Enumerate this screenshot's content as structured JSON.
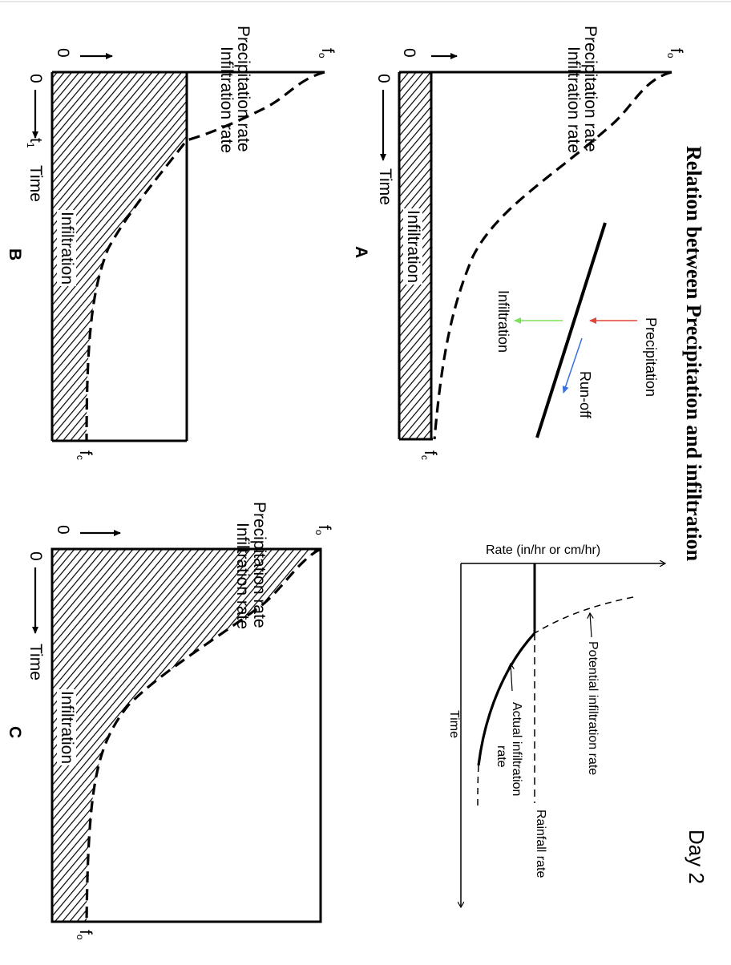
{
  "title": "Relation between Precipitation and infiltration",
  "day_label": "Day 2",
  "panels": [
    {
      "id": "A",
      "letter": "A",
      "axis_top_line1": "Precipitation rate",
      "axis_top_line2": "Infiltration rate",
      "origin_zero_x": "0",
      "origin_zero_y": "0",
      "time_label": "Time",
      "f0_label": "f",
      "f0_sub": "o",
      "fc_label": "f",
      "fc_sub": "c",
      "region_label": "Infiltration"
    },
    {
      "id": "B",
      "letter": "B",
      "axis_top_line1": "Precipitation rate",
      "axis_top_line2": "Infiltration rate",
      "origin_zero_x": "0",
      "origin_zero_y": "0",
      "t1_label": "t",
      "t1_sub": "1",
      "time_label": "Time",
      "f0_label": "f",
      "f0_sub": "o",
      "fc_label": "f",
      "fc_sub": "c",
      "region_label": "Infiltration"
    },
    {
      "id": "C",
      "letter": "C",
      "axis_top_line1": "Precipitation rate",
      "axis_top_line2": "Infiltration rate",
      "origin_zero_x": "0",
      "origin_zero_y": "0",
      "time_label": "Time",
      "f0_label": "f",
      "f0_sub": "o",
      "fc_label": "f",
      "fc_sub": "o",
      "region_label": "Infiltration"
    }
  ],
  "slope_diagram": {
    "precipitation": "Precipitation",
    "runoff": "Run-off",
    "infiltration": "Infiltration",
    "colors": {
      "precipitation": "#e0443a",
      "runoff": "#3a6fe0",
      "infiltration": "#7fe05a"
    }
  },
  "rate_graph": {
    "y_axis_label": "Rate (in/hr or cm/hr)",
    "x_axis_label": "Time",
    "potential": "Potential infiltration rate",
    "actual_line1": "Actual infiltration",
    "actual_line2": "rate",
    "rainfall": "Rainfall rate"
  }
}
